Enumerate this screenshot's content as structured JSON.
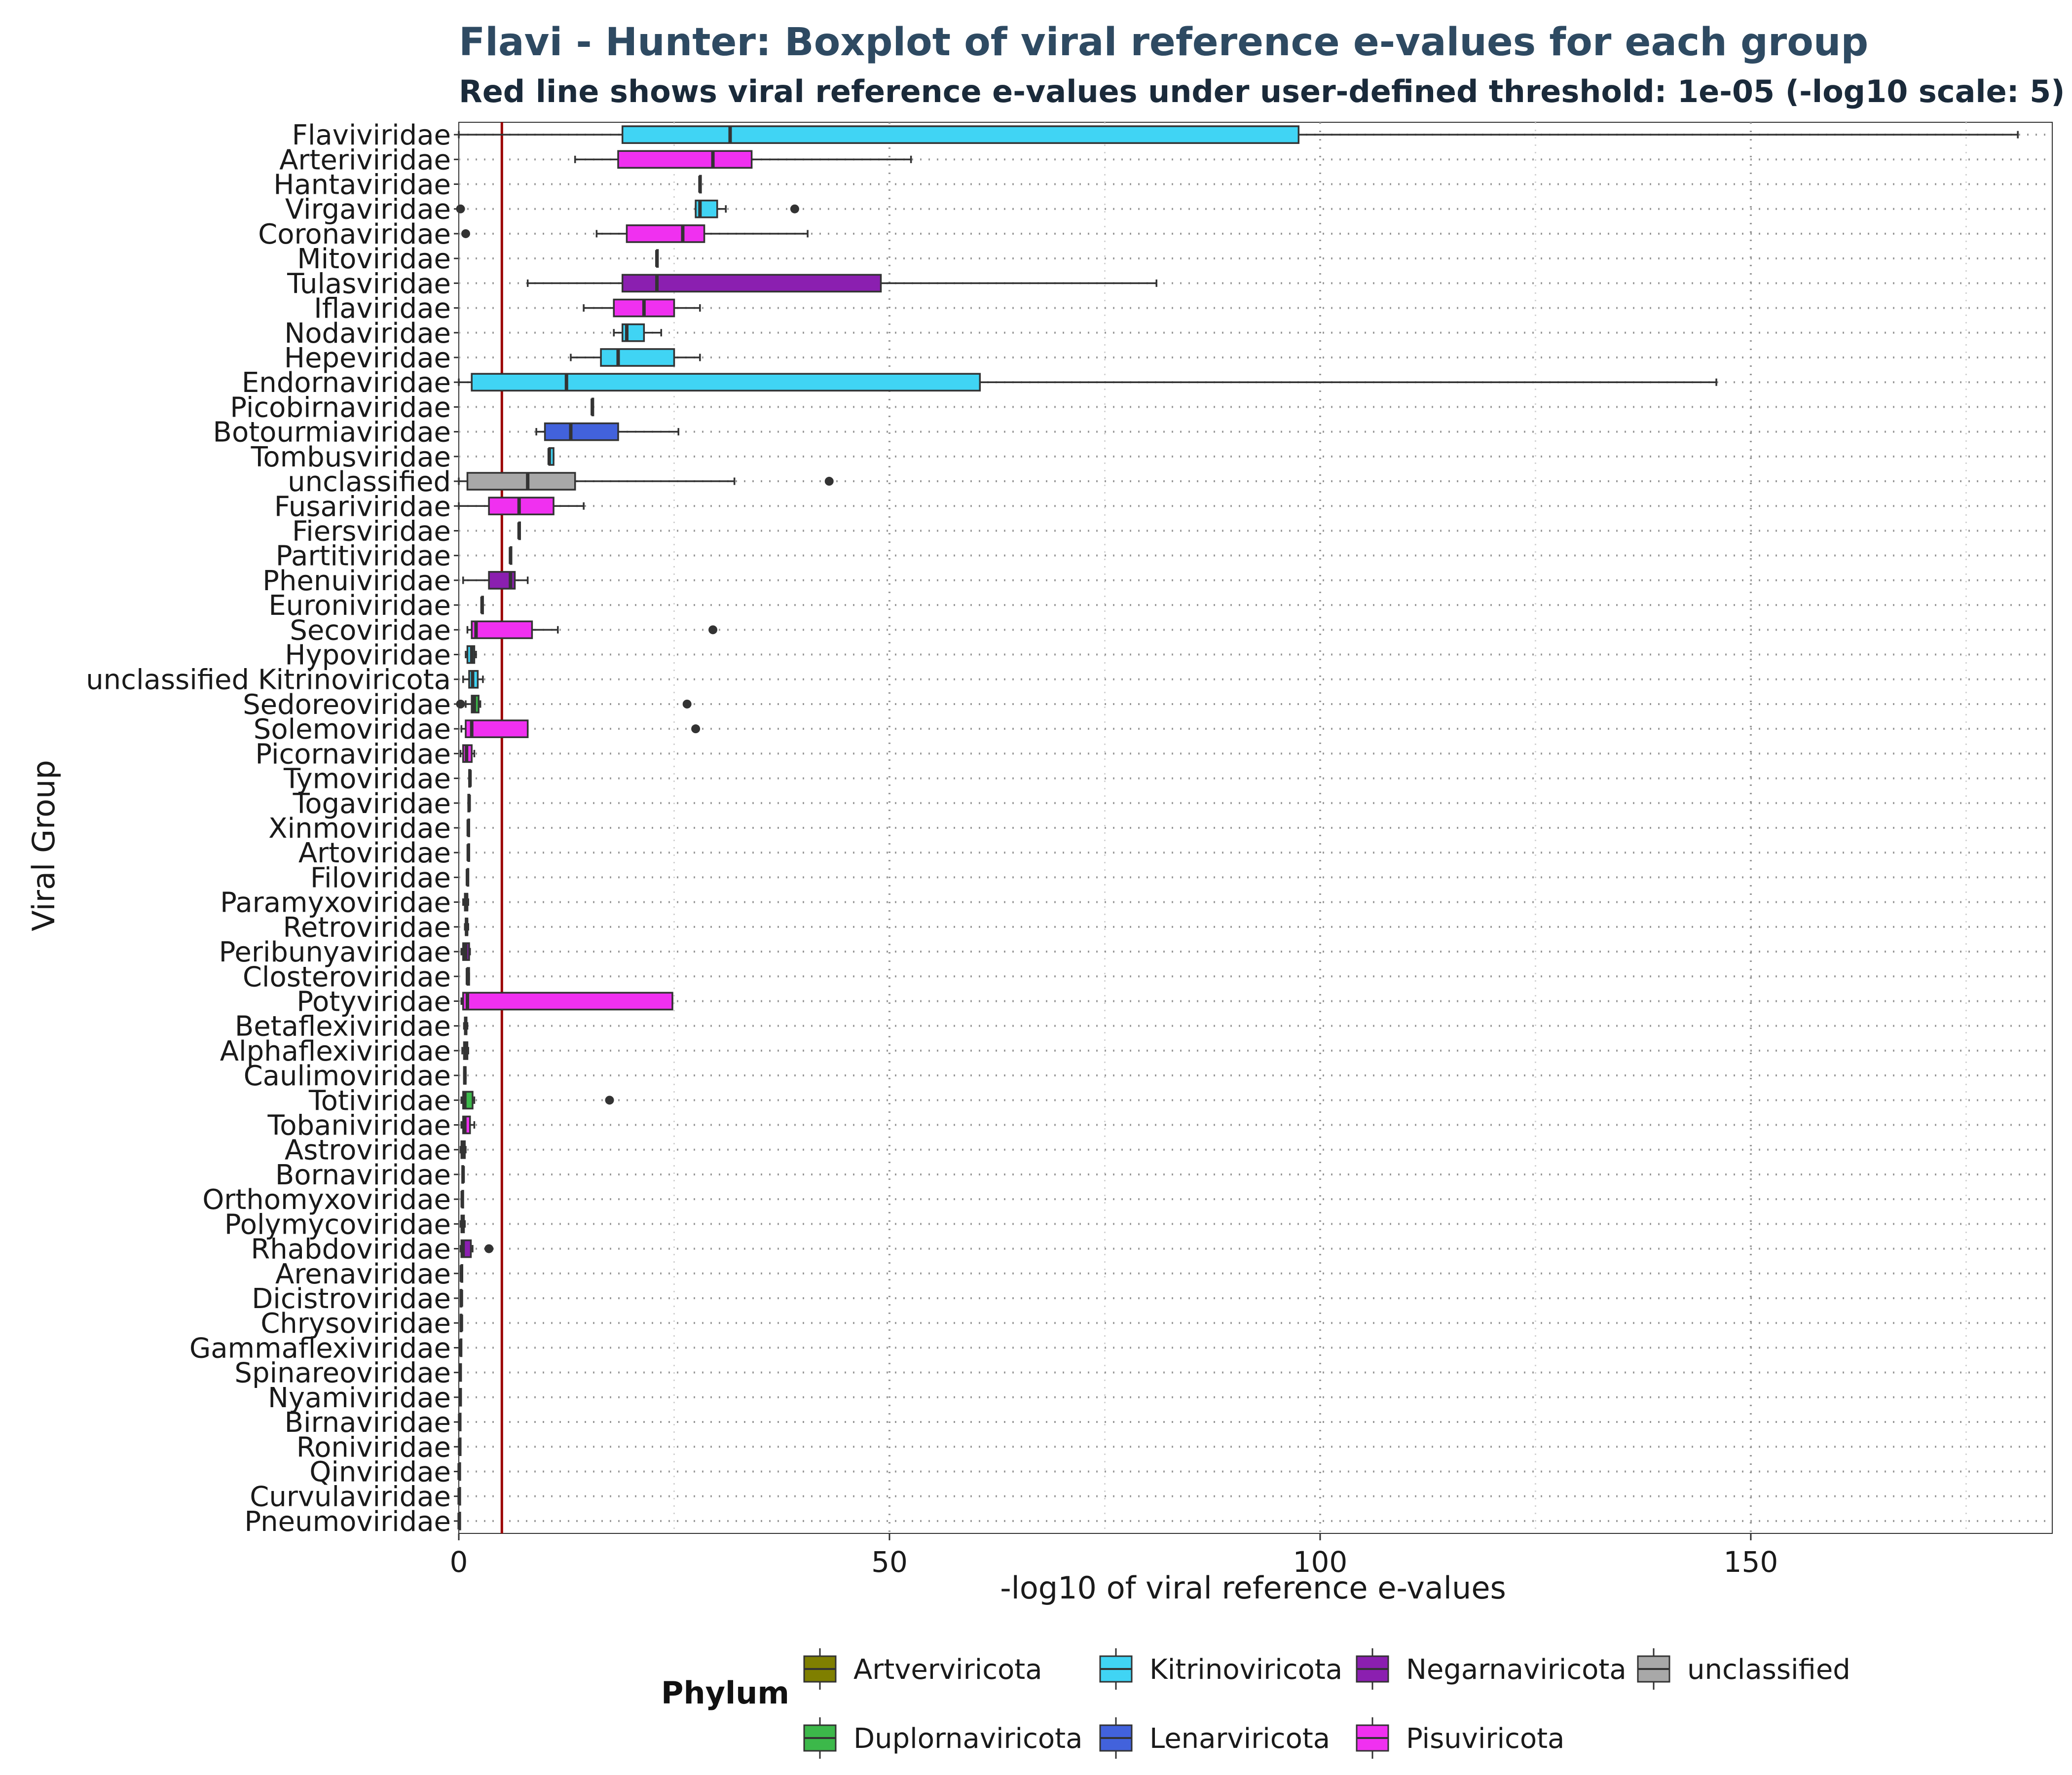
{
  "chart_data": {
    "type": "boxplot",
    "orientation": "horizontal",
    "title": "Flavi - Hunter: Boxplot of viral reference e-values for each group",
    "subtitle": "Red line shows viral reference e-values under user-defined threshold: 1e-05 (-log10 scale: 5)",
    "xlabel": "-log10 of viral reference e-values",
    "ylabel": "Viral Group",
    "xlim": [
      0,
      185
    ],
    "x_ticks": [
      0,
      50,
      100,
      150
    ],
    "threshold": 5,
    "grid": "dotted",
    "legend_title": "Phylum",
    "legend_position": "bottom",
    "legend": [
      {
        "name": "Artverviricota",
        "color": "#7f7f00"
      },
      {
        "name": "Kitrinoviricota",
        "color": "#40d4f4"
      },
      {
        "name": "Negarnaviricota",
        "color": "#8b1fb0"
      },
      {
        "name": "unclassified",
        "color": "#a8a8a8"
      },
      {
        "name": "Duplornaviricota",
        "color": "#3cb84a"
      },
      {
        "name": "Lenarviricota",
        "color": "#4262dc"
      },
      {
        "name": "Pisuviricota",
        "color": "#f030f0"
      }
    ],
    "series": [
      {
        "name": "Flaviviridae",
        "phylum": "Kitrinoviricota",
        "min": 0,
        "q1": 19,
        "median": 31.5,
        "q3": 97.5,
        "max": 181,
        "outliers": []
      },
      {
        "name": "Arteriviridae",
        "phylum": "Pisuviricota",
        "min": 13.5,
        "q1": 18.5,
        "median": 29.5,
        "q3": 34,
        "max": 52.5,
        "outliers": []
      },
      {
        "name": "Hantaviridae",
        "phylum": "Negarnaviricota",
        "min": 28,
        "q1": 28,
        "median": 28,
        "q3": 28,
        "max": 28,
        "outliers": []
      },
      {
        "name": "Virgaviridae",
        "phylum": "Kitrinoviricota",
        "min": 27.5,
        "q1": 27.5,
        "median": 28,
        "q3": 30,
        "max": 31,
        "outliers": [
          0.2,
          39
        ]
      },
      {
        "name": "Coronaviridae",
        "phylum": "Pisuviricota",
        "min": 16,
        "q1": 19.5,
        "median": 26,
        "q3": 28.5,
        "max": 40.5,
        "outliers": [
          0.8
        ]
      },
      {
        "name": "Mitoviridae",
        "phylum": "Lenarviricota",
        "min": 23,
        "q1": 23,
        "median": 23,
        "q3": 23,
        "max": 23,
        "outliers": []
      },
      {
        "name": "Tulasviridae",
        "phylum": "Negarnaviricota",
        "min": 8,
        "q1": 19,
        "median": 23,
        "q3": 49,
        "max": 81,
        "outliers": []
      },
      {
        "name": "Iflaviridae",
        "phylum": "Pisuviricota",
        "min": 14.5,
        "q1": 18,
        "median": 21.5,
        "q3": 25,
        "max": 28,
        "outliers": []
      },
      {
        "name": "Nodaviridae",
        "phylum": "Kitrinoviricota",
        "min": 18,
        "q1": 19,
        "median": 19.5,
        "q3": 21.5,
        "max": 23.5,
        "outliers": []
      },
      {
        "name": "Hepeviridae",
        "phylum": "Kitrinoviricota",
        "min": 13,
        "q1": 16.5,
        "median": 18.5,
        "q3": 25,
        "max": 28,
        "outliers": []
      },
      {
        "name": "Endornaviridae",
        "phylum": "Kitrinoviricota",
        "min": 0,
        "q1": 1.5,
        "median": 12.5,
        "q3": 60.5,
        "max": 146,
        "outliers": []
      },
      {
        "name": "Picobirnaviridae",
        "phylum": "Pisuviricota",
        "min": 15.5,
        "q1": 15.5,
        "median": 15.5,
        "q3": 15.5,
        "max": 15.5,
        "outliers": []
      },
      {
        "name": "Botourmiaviridae",
        "phylum": "Lenarviricota",
        "min": 9,
        "q1": 10,
        "median": 13,
        "q3": 18.5,
        "max": 25.5,
        "outliers": []
      },
      {
        "name": "Tombusviridae",
        "phylum": "Kitrinoviricota",
        "min": 10.5,
        "q1": 10.5,
        "median": 10.5,
        "q3": 11,
        "max": 11,
        "outliers": []
      },
      {
        "name": "unclassified",
        "phylum": "unclassified",
        "min": 0,
        "q1": 1,
        "median": 8,
        "q3": 13.5,
        "max": 32,
        "outliers": [
          43
        ]
      },
      {
        "name": "Fusariviridae",
        "phylum": "Pisuviricota",
        "min": 0,
        "q1": 3.5,
        "median": 7,
        "q3": 11,
        "max": 14.5,
        "outliers": []
      },
      {
        "name": "Fiersviridae",
        "phylum": "Lenarviricota",
        "min": 7,
        "q1": 7,
        "median": 7,
        "q3": 7,
        "max": 7,
        "outliers": []
      },
      {
        "name": "Partitiviridae",
        "phylum": "Pisuviricota",
        "min": 6,
        "q1": 6,
        "median": 6,
        "q3": 6,
        "max": 6,
        "outliers": []
      },
      {
        "name": "Phenuiviridae",
        "phylum": "Negarnaviricota",
        "min": 0.5,
        "q1": 3.5,
        "median": 6,
        "q3": 6.5,
        "max": 8,
        "outliers": []
      },
      {
        "name": "Euroniviridae",
        "phylum": "Pisuviricota",
        "min": 2.7,
        "q1": 2.7,
        "median": 2.7,
        "q3": 2.7,
        "max": 2.7,
        "outliers": []
      },
      {
        "name": "Secoviridae",
        "phylum": "Pisuviricota",
        "min": 1,
        "q1": 1.5,
        "median": 2,
        "q3": 8.5,
        "max": 11.5,
        "outliers": [
          29.5
        ]
      },
      {
        "name": "Hypoviridae",
        "phylum": "Kitrinoviricota",
        "min": 0.8,
        "q1": 1,
        "median": 1.5,
        "q3": 1.8,
        "max": 2,
        "outliers": []
      },
      {
        "name": "unclassified Kitrinoviricota",
        "phylum": "Kitrinoviricota",
        "min": 0.5,
        "q1": 1.2,
        "median": 1.6,
        "q3": 2.2,
        "max": 2.8,
        "outliers": []
      },
      {
        "name": "Sedoreoviridae",
        "phylum": "Duplornaviricota",
        "min": 0.8,
        "q1": 1.5,
        "median": 1.8,
        "q3": 2.3,
        "max": 2.5,
        "outliers": [
          0.2,
          26.5
        ]
      },
      {
        "name": "Solemoviridae",
        "phylum": "Pisuviricota",
        "min": 0.3,
        "q1": 0.8,
        "median": 1.5,
        "q3": 8,
        "max": 8,
        "outliers": [
          27.5
        ]
      },
      {
        "name": "Picornaviridae",
        "phylum": "Pisuviricota",
        "min": 0.2,
        "q1": 0.5,
        "median": 0.9,
        "q3": 1.5,
        "max": 1.8,
        "outliers": []
      },
      {
        "name": "Tymoviridae",
        "phylum": "Kitrinoviricota",
        "min": 1.2,
        "q1": 1.2,
        "median": 1.3,
        "q3": 1.3,
        "max": 1.3,
        "outliers": []
      },
      {
        "name": "Togaviridae",
        "phylum": "Kitrinoviricota",
        "min": 1.1,
        "q1": 1.1,
        "median": 1.2,
        "q3": 1.2,
        "max": 1.2,
        "outliers": []
      },
      {
        "name": "Xinmoviridae",
        "phylum": "Negarnaviricota",
        "min": 1.1,
        "q1": 1.1,
        "median": 1.1,
        "q3": 1.1,
        "max": 1.1,
        "outliers": []
      },
      {
        "name": "Artoviridae",
        "phylum": "Negarnaviricota",
        "min": 1.1,
        "q1": 1.1,
        "median": 1.1,
        "q3": 1.1,
        "max": 1.1,
        "outliers": []
      },
      {
        "name": "Filoviridae",
        "phylum": "Negarnaviricota",
        "min": 1,
        "q1": 1,
        "median": 1,
        "q3": 1,
        "max": 1,
        "outliers": []
      },
      {
        "name": "Paramyxoviridae",
        "phylum": "Negarnaviricota",
        "min": 0.5,
        "q1": 0.7,
        "median": 0.9,
        "q3": 1,
        "max": 1.1,
        "outliers": []
      },
      {
        "name": "Retroviridae",
        "phylum": "Artverviricota",
        "min": 0.7,
        "q1": 0.8,
        "median": 0.9,
        "q3": 1,
        "max": 1.1,
        "outliers": []
      },
      {
        "name": "Peribunyaviridae",
        "phylum": "Negarnaviricota",
        "min": 0.3,
        "q1": 0.5,
        "median": 0.8,
        "q3": 1.2,
        "max": 1.3,
        "outliers": []
      },
      {
        "name": "Closteroviridae",
        "phylum": "Kitrinoviricota",
        "min": 1,
        "q1": 1,
        "median": 1,
        "q3": 1.2,
        "max": 1.2,
        "outliers": []
      },
      {
        "name": "Potyviridae",
        "phylum": "Pisuviricota",
        "min": 0.3,
        "q1": 0.5,
        "median": 1,
        "q3": 24.8,
        "max": 24.8,
        "outliers": []
      },
      {
        "name": "Betaflexiviridae",
        "phylum": "Kitrinoviricota",
        "min": 0.6,
        "q1": 0.7,
        "median": 0.8,
        "q3": 0.9,
        "max": 1,
        "outliers": []
      },
      {
        "name": "Alphaflexiviridae",
        "phylum": "Kitrinoviricota",
        "min": 0.4,
        "q1": 0.6,
        "median": 0.8,
        "q3": 1,
        "max": 1.1,
        "outliers": []
      },
      {
        "name": "Caulimoviridae",
        "phylum": "Artverviricota",
        "min": 0.6,
        "q1": 0.6,
        "median": 0.7,
        "q3": 0.8,
        "max": 0.8,
        "outliers": []
      },
      {
        "name": "Totiviridae",
        "phylum": "Duplornaviricota",
        "min": 0.3,
        "q1": 0.5,
        "median": 0.7,
        "q3": 1.6,
        "max": 1.8,
        "outliers": [
          17.5
        ]
      },
      {
        "name": "Tobaniviridae",
        "phylum": "Pisuviricota",
        "min": 0.3,
        "q1": 0.5,
        "median": 0.7,
        "q3": 1.3,
        "max": 1.8,
        "outliers": []
      },
      {
        "name": "Astroviridae",
        "phylum": "Pisuviricota",
        "min": 0.2,
        "q1": 0.3,
        "median": 0.5,
        "q3": 0.7,
        "max": 0.8,
        "outliers": []
      },
      {
        "name": "Bornaviridae",
        "phylum": "Negarnaviricota",
        "min": 0.4,
        "q1": 0.4,
        "median": 0.5,
        "q3": 0.5,
        "max": 0.5,
        "outliers": []
      },
      {
        "name": "Orthomyxoviridae",
        "phylum": "Negarnaviricota",
        "min": 0.4,
        "q1": 0.4,
        "median": 0.4,
        "q3": 0.4,
        "max": 0.4,
        "outliers": []
      },
      {
        "name": "Polymycoviridae",
        "phylum": "Pisuviricota",
        "min": 0.2,
        "q1": 0.3,
        "median": 0.4,
        "q3": 0.6,
        "max": 0.7,
        "outliers": []
      },
      {
        "name": "Rhabdoviridae",
        "phylum": "Negarnaviricota",
        "min": 0.2,
        "q1": 0.3,
        "median": 0.5,
        "q3": 1.4,
        "max": 1.6,
        "outliers": [
          3.5
        ]
      },
      {
        "name": "Arenaviridae",
        "phylum": "Negarnaviricota",
        "min": 0.3,
        "q1": 0.3,
        "median": 0.3,
        "q3": 0.3,
        "max": 0.3,
        "outliers": []
      },
      {
        "name": "Dicistroviridae",
        "phylum": "Pisuviricota",
        "min": 0.2,
        "q1": 0.2,
        "median": 0.3,
        "q3": 0.3,
        "max": 0.3,
        "outliers": []
      },
      {
        "name": "Chrysoviridae",
        "phylum": "Duplornaviricota",
        "min": 0.2,
        "q1": 0.2,
        "median": 0.3,
        "q3": 0.3,
        "max": 0.3,
        "outliers": []
      },
      {
        "name": "Gammaflexiviridae",
        "phylum": "Kitrinoviricota",
        "min": 0.2,
        "q1": 0.2,
        "median": 0.2,
        "q3": 0.2,
        "max": 0.2,
        "outliers": []
      },
      {
        "name": "Spinareoviridae",
        "phylum": "Duplornaviricota",
        "min": 0.15,
        "q1": 0.15,
        "median": 0.15,
        "q3": 0.15,
        "max": 0.15,
        "outliers": []
      },
      {
        "name": "Nyamiviridae",
        "phylum": "Negarnaviricota",
        "min": 0.15,
        "q1": 0.15,
        "median": 0.15,
        "q3": 0.15,
        "max": 0.15,
        "outliers": []
      },
      {
        "name": "Birnaviridae",
        "phylum": "unclassified",
        "min": 0.1,
        "q1": 0.1,
        "median": 0.1,
        "q3": 0.1,
        "max": 0.1,
        "outliers": []
      },
      {
        "name": "Roniviridae",
        "phylum": "Pisuviricota",
        "min": 0.1,
        "q1": 0.1,
        "median": 0.1,
        "q3": 0.1,
        "max": 0.1,
        "outliers": []
      },
      {
        "name": "Qinviridae",
        "phylum": "Negarnaviricota",
        "min": 0.05,
        "q1": 0.05,
        "median": 0.05,
        "q3": 0.05,
        "max": 0.05,
        "outliers": []
      },
      {
        "name": "Curvulaviridae",
        "phylum": "Pisuviricota",
        "min": 0.05,
        "q1": 0.05,
        "median": 0.05,
        "q3": 0.05,
        "max": 0.05,
        "outliers": []
      },
      {
        "name": "Pneumoviridae",
        "phylum": "Negarnaviricota",
        "min": 0.05,
        "q1": 0.05,
        "median": 0.05,
        "q3": 0.05,
        "max": 0.05,
        "outliers": []
      }
    ]
  }
}
